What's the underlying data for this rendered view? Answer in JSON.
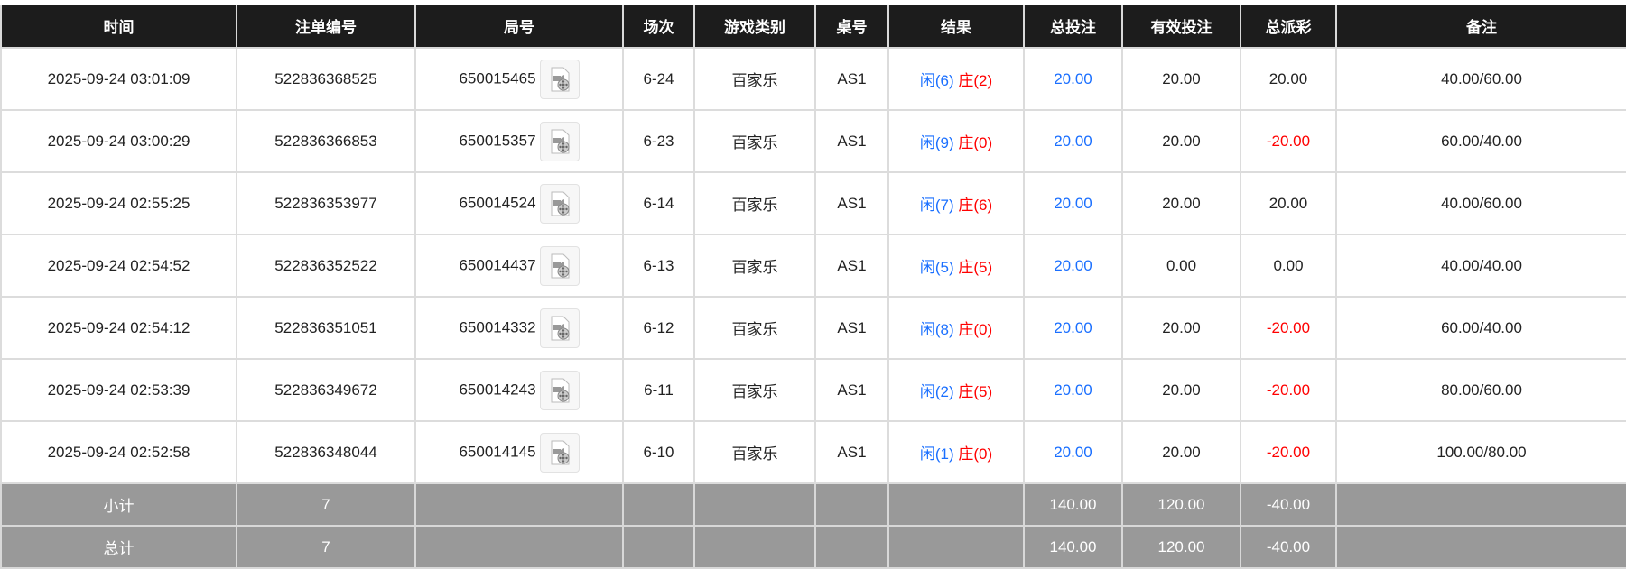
{
  "headers": [
    "时间",
    "注单编号",
    "局号",
    "场次",
    "游戏类别",
    "桌号",
    "结果",
    "总投注",
    "有效投注",
    "总派彩",
    "备注"
  ],
  "rows": [
    {
      "time": "2025-09-24 03:01:09",
      "bet_id": "522836368525",
      "round": "650015465",
      "session": "6-24",
      "game": "百家乐",
      "table": "AS1",
      "player": "闲(6)",
      "banker": "庄(2)",
      "total_bet": "20.00",
      "valid_bet": "20.00",
      "payout": "20.00",
      "payout_negative": false,
      "note": "40.00/60.00"
    },
    {
      "time": "2025-09-24 03:00:29",
      "bet_id": "522836366853",
      "round": "650015357",
      "session": "6-23",
      "game": "百家乐",
      "table": "AS1",
      "player": "闲(9)",
      "banker": "庄(0)",
      "total_bet": "20.00",
      "valid_bet": "20.00",
      "payout": "-20.00",
      "payout_negative": true,
      "note": "60.00/40.00"
    },
    {
      "time": "2025-09-24 02:55:25",
      "bet_id": "522836353977",
      "round": "650014524",
      "session": "6-14",
      "game": "百家乐",
      "table": "AS1",
      "player": "闲(7)",
      "banker": "庄(6)",
      "total_bet": "20.00",
      "valid_bet": "20.00",
      "payout": "20.00",
      "payout_negative": false,
      "note": "40.00/60.00"
    },
    {
      "time": "2025-09-24 02:54:52",
      "bet_id": "522836352522",
      "round": "650014437",
      "session": "6-13",
      "game": "百家乐",
      "table": "AS1",
      "player": "闲(5)",
      "banker": "庄(5)",
      "total_bet": "20.00",
      "valid_bet": "0.00",
      "payout": "0.00",
      "payout_negative": false,
      "note": "40.00/40.00"
    },
    {
      "time": "2025-09-24 02:54:12",
      "bet_id": "522836351051",
      "round": "650014332",
      "session": "6-12",
      "game": "百家乐",
      "table": "AS1",
      "player": "闲(8)",
      "banker": "庄(0)",
      "total_bet": "20.00",
      "valid_bet": "20.00",
      "payout": "-20.00",
      "payout_negative": true,
      "note": "60.00/40.00"
    },
    {
      "time": "2025-09-24 02:53:39",
      "bet_id": "522836349672",
      "round": "650014243",
      "session": "6-11",
      "game": "百家乐",
      "table": "AS1",
      "player": "闲(2)",
      "banker": "庄(5)",
      "total_bet": "20.00",
      "valid_bet": "20.00",
      "payout": "-20.00",
      "payout_negative": true,
      "note": "80.00/60.00"
    },
    {
      "time": "2025-09-24 02:52:58",
      "bet_id": "522836348044",
      "round": "650014145",
      "session": "6-10",
      "game": "百家乐",
      "table": "AS1",
      "player": "闲(1)",
      "banker": "庄(0)",
      "total_bet": "20.00",
      "valid_bet": "20.00",
      "payout": "-20.00",
      "payout_negative": true,
      "note": "100.00/80.00"
    }
  ],
  "summary": [
    {
      "label": "小计",
      "count": "7",
      "total_bet": "140.00",
      "valid_bet": "120.00",
      "payout": "-40.00"
    },
    {
      "label": "总计",
      "count": "7",
      "total_bet": "140.00",
      "valid_bet": "120.00",
      "payout": "-40.00"
    }
  ],
  "colors": {
    "player": "#1a6fff",
    "banker": "#ff0000",
    "negative": "#ff0000",
    "header_bg": "#1c1c1c",
    "summary_bg": "#999999"
  },
  "icons": {
    "replay": "video-replay-icon"
  }
}
